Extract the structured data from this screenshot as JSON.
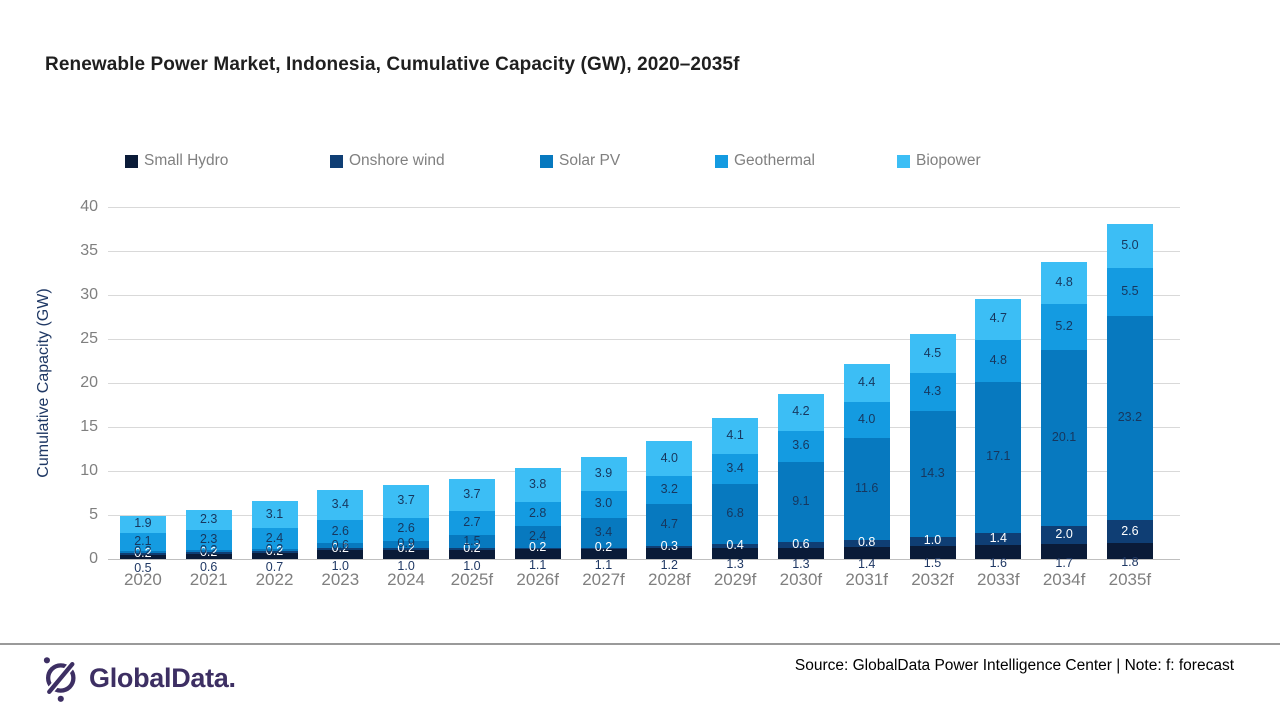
{
  "title": "Renewable Power Market, Indonesia, Cumulative Capacity (GW), 2020–2035f",
  "chart_data": {
    "type": "bar",
    "stacked": true,
    "title": "Renewable Power Market, Indonesia, Cumulative Capacity (GW), 2020–2035f",
    "ylabel": "Cumulative Capacity (GW)",
    "xlabel": "",
    "ylim": [
      0,
      40
    ],
    "yticks": [
      0,
      5,
      10,
      15,
      20,
      25,
      30,
      35,
      40
    ],
    "grid": true,
    "legend_position": "top",
    "categories": [
      "2020",
      "2021",
      "2022",
      "2023",
      "2024",
      "2025f",
      "2026f",
      "2027f",
      "2028f",
      "2029f",
      "2030f",
      "2031f",
      "2032f",
      "2033f",
      "2034f",
      "2035f"
    ],
    "series": [
      {
        "name": "Small Hydro",
        "color": "#0a1b38",
        "label_color": "#1f3864",
        "label_position": "below-axis",
        "values": [
          0.5,
          0.6,
          0.7,
          1.0,
          1.0,
          1.0,
          1.1,
          1.1,
          1.2,
          1.3,
          1.3,
          1.4,
          1.5,
          1.6,
          1.7,
          1.8
        ]
      },
      {
        "name": "Onshore wind",
        "color": "#0f3e74",
        "label_color": "#ffffff",
        "label_position": "center",
        "values": [
          0.2,
          0.2,
          0.2,
          0.2,
          0.2,
          0.2,
          0.2,
          0.2,
          0.3,
          0.4,
          0.6,
          0.8,
          1.0,
          1.4,
          2.0,
          2.6
        ]
      },
      {
        "name": "Solar PV",
        "color": "#0779bf",
        "label_color": "#17375e",
        "label_position": "center",
        "values": [
          0.2,
          0.2,
          0.2,
          0.6,
          0.9,
          1.5,
          2.4,
          3.4,
          4.7,
          6.8,
          9.1,
          11.6,
          14.3,
          17.1,
          20.1,
          23.2
        ]
      },
      {
        "name": "Geothermal",
        "color": "#149be1",
        "label_color": "#17375e",
        "label_position": "center",
        "values": [
          2.1,
          2.3,
          2.4,
          2.6,
          2.6,
          2.7,
          2.8,
          3.0,
          3.2,
          3.4,
          3.6,
          4.0,
          4.3,
          4.8,
          5.2,
          5.5
        ]
      },
      {
        "name": "Biopower",
        "color": "#3cbef5",
        "label_color": "#17375e",
        "label_position": "center",
        "values": [
          1.9,
          2.3,
          3.1,
          3.4,
          3.7,
          3.7,
          3.8,
          3.9,
          4.0,
          4.1,
          4.2,
          4.4,
          4.5,
          4.7,
          4.8,
          5.0
        ]
      }
    ]
  },
  "footer": {
    "source": "Source: GlobalData Power Intelligence Center | Note: f: forecast",
    "logo_text": "GlobalData.",
    "logo_color": "#3d2f63"
  }
}
